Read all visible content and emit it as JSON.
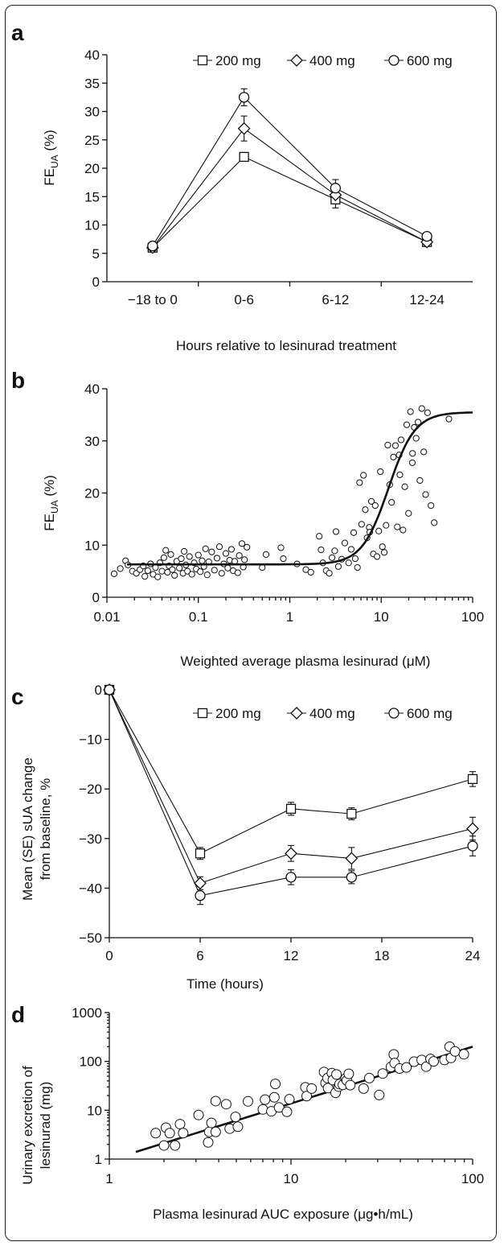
{
  "chart_data": [
    {
      "panel": "a",
      "type": "line",
      "ylabel_main": "FE",
      "ylabel_sub": "UA",
      "ylabel_tail": " (%)",
      "xlabel": "Hours relative to lesinurad treatment",
      "categories": [
        "−18 to 0",
        "0-6",
        "6-12",
        "12-24"
      ],
      "ylim": [
        0,
        40
      ],
      "yticks": [
        0,
        5,
        10,
        15,
        20,
        25,
        30,
        35,
        40
      ],
      "legend_position": "top-right",
      "series": [
        {
          "name": "200 mg",
          "marker": "square",
          "values": [
            6,
            22,
            14.5,
            7
          ],
          "errors": [
            0.3,
            0.4,
            1.5,
            0.5
          ]
        },
        {
          "name": "400 mg",
          "marker": "diamond",
          "values": [
            6,
            27,
            15.3,
            7
          ],
          "errors": [
            0.3,
            2.2,
            1.5,
            0.6
          ]
        },
        {
          "name": "600 mg",
          "marker": "circle",
          "values": [
            6.3,
            32.5,
            16.5,
            8
          ],
          "errors": [
            0.3,
            1.5,
            1.5,
            0.4
          ]
        }
      ]
    },
    {
      "panel": "b",
      "type": "scatter",
      "ylabel_main": "FE",
      "ylabel_sub": "UA",
      "ylabel_tail": " (%)",
      "xlabel": "Weighted average plasma lesinurad (μM)",
      "xscale": "log",
      "xlim": [
        0.01,
        100
      ],
      "xticks": [
        "0.01",
        "0.1",
        "1",
        "10",
        "100"
      ],
      "ylim": [
        0,
        40
      ],
      "yticks": [
        0,
        10,
        20,
        30,
        40
      ],
      "fit_curve": {
        "baseline": 6.3,
        "max": 35.5,
        "ec50": 12,
        "hill": 3
      },
      "points": [
        [
          0.012,
          4.5
        ],
        [
          0.014,
          5.5
        ],
        [
          0.016,
          7
        ],
        [
          0.017,
          6.2
        ],
        [
          0.019,
          5
        ],
        [
          0.021,
          4.6
        ],
        [
          0.023,
          5.3
        ],
        [
          0.025,
          6
        ],
        [
          0.026,
          4
        ],
        [
          0.028,
          5.1
        ],
        [
          0.03,
          6.4
        ],
        [
          0.032,
          4.4
        ],
        [
          0.034,
          5.7
        ],
        [
          0.036,
          3.9
        ],
        [
          0.038,
          6.6
        ],
        [
          0.04,
          5
        ],
        [
          0.042,
          7.6
        ],
        [
          0.044,
          9
        ],
        [
          0.046,
          4.8
        ],
        [
          0.048,
          6
        ],
        [
          0.05,
          8.2
        ],
        [
          0.052,
          5.3
        ],
        [
          0.055,
          4.2
        ],
        [
          0.058,
          6.9
        ],
        [
          0.062,
          5.6
        ],
        [
          0.065,
          7.4
        ],
        [
          0.068,
          4.6
        ],
        [
          0.07,
          8.8
        ],
        [
          0.073,
          6.2
        ],
        [
          0.076,
          5
        ],
        [
          0.08,
          7.8
        ],
        [
          0.085,
          4.4
        ],
        [
          0.09,
          6.6
        ],
        [
          0.095,
          5.4
        ],
        [
          0.1,
          8.1
        ],
        [
          0.105,
          4.9
        ],
        [
          0.11,
          7
        ],
        [
          0.115,
          5.9
        ],
        [
          0.12,
          9.3
        ],
        [
          0.125,
          4.3
        ],
        [
          0.13,
          6.8
        ],
        [
          0.14,
          8.7
        ],
        [
          0.15,
          5.2
        ],
        [
          0.16,
          7.5
        ],
        [
          0.17,
          9.7
        ],
        [
          0.18,
          4.6
        ],
        [
          0.19,
          6.4
        ],
        [
          0.2,
          8.4
        ],
        [
          0.21,
          5.6
        ],
        [
          0.22,
          7.1
        ],
        [
          0.23,
          9.2
        ],
        [
          0.24,
          5.1
        ],
        [
          0.25,
          6.9
        ],
        [
          0.27,
          4.7
        ],
        [
          0.28,
          8
        ],
        [
          0.3,
          10.3
        ],
        [
          0.31,
          5.8
        ],
        [
          0.32,
          7.2
        ],
        [
          0.34,
          9.6
        ],
        [
          0.5,
          5.7
        ],
        [
          0.55,
          8.2
        ],
        [
          0.8,
          9.5
        ],
        [
          0.85,
          7.4
        ],
        [
          1.2,
          6.4
        ],
        [
          1.5,
          5.3
        ],
        [
          1.7,
          4.8
        ],
        [
          2.1,
          11.7
        ],
        [
          2.2,
          9.1
        ],
        [
          2.3,
          6.6
        ],
        [
          2.5,
          5.1
        ],
        [
          2.7,
          4.6
        ],
        [
          2.9,
          7.6
        ],
        [
          3.1,
          8.9
        ],
        [
          3.2,
          12.6
        ],
        [
          3.4,
          5.9
        ],
        [
          3.7,
          7.3
        ],
        [
          4,
          10.4
        ],
        [
          4.4,
          6.6
        ],
        [
          4.7,
          9.2
        ],
        [
          5,
          12.4
        ],
        [
          5.2,
          7.4
        ],
        [
          5.5,
          5.7
        ],
        [
          5.8,
          22
        ],
        [
          6.1,
          14
        ],
        [
          6.4,
          23.4
        ],
        [
          6.7,
          16.8
        ],
        [
          7,
          11.4
        ],
        [
          7.4,
          13.4
        ],
        [
          7.8,
          18.4
        ],
        [
          8.2,
          8.3
        ],
        [
          8.6,
          17.6
        ],
        [
          9,
          7.8
        ],
        [
          9.4,
          12.7
        ],
        [
          9.8,
          24.1
        ],
        [
          10.3,
          9.7
        ],
        [
          10.8,
          8.6
        ],
        [
          11.3,
          13.8
        ],
        [
          11.8,
          29.2
        ],
        [
          12.4,
          21.6
        ],
        [
          13,
          18.2
        ],
        [
          13.6,
          26.9
        ],
        [
          14.3,
          29.1
        ],
        [
          15,
          13.5
        ],
        [
          15.7,
          27.3
        ],
        [
          16.5,
          30.2
        ],
        [
          17.3,
          12.9
        ],
        [
          18.1,
          21.2
        ],
        [
          19,
          33.1
        ],
        [
          19.9,
          16.1
        ],
        [
          20.9,
          35.6
        ],
        [
          21.9,
          25.8
        ],
        [
          23,
          32.6
        ],
        [
          24.1,
          30.5
        ],
        [
          25.3,
          33.6
        ],
        [
          26.5,
          22.4
        ],
        [
          27.8,
          36.2
        ],
        [
          29.2,
          27.9
        ],
        [
          30.6,
          19.7
        ],
        [
          32.1,
          35.4
        ],
        [
          35,
          17.6
        ],
        [
          38,
          14.3
        ],
        [
          55,
          34.2
        ],
        [
          7.5,
          12.5
        ],
        [
          16,
          23.5
        ],
        [
          22,
          27.6
        ]
      ]
    },
    {
      "panel": "c",
      "type": "line",
      "ylabel_line1": "Mean (SE) sUA change",
      "ylabel_line2": "from baseline, %",
      "xlabel": "Time (hours)",
      "x": [
        0,
        6,
        12,
        16,
        24
      ],
      "xlim": [
        0,
        24
      ],
      "xticks": [
        0,
        6,
        12,
        18,
        24
      ],
      "ylim": [
        -50,
        0
      ],
      "yticks": [
        0,
        -10,
        -20,
        -30,
        -40,
        -50
      ],
      "legend_position": "top-right",
      "series": [
        {
          "name": "200 mg",
          "marker": "square",
          "values": [
            0,
            -33,
            -24,
            -25,
            -18
          ],
          "errors": [
            0.3,
            1.2,
            1.3,
            1.2,
            1.5
          ]
        },
        {
          "name": "400 mg",
          "marker": "diamond",
          "values": [
            0,
            -39,
            -33,
            -34,
            -28
          ],
          "errors": [
            0.3,
            1.3,
            1.6,
            2.2,
            2.3
          ]
        },
        {
          "name": "600 mg",
          "marker": "circle",
          "values": [
            0,
            -41.5,
            -37.8,
            -37.8,
            -31.5
          ],
          "errors": [
            0.3,
            1.8,
            1.5,
            1.3,
            2.0
          ]
        }
      ]
    },
    {
      "panel": "d",
      "type": "scatter",
      "ylabel_line1": "Urinary excretion of",
      "ylabel_line2": "lesinurad (mg)",
      "xlabel": "Plasma lesinurad AUC exposure (μg•h/mL)",
      "xscale": "log",
      "yscale": "log",
      "xlim": [
        1,
        100
      ],
      "ylim": [
        1,
        1000
      ],
      "xticks": [
        "1",
        "10",
        "100"
      ],
      "yticks": [
        "1",
        "10",
        "100",
        "1000"
      ],
      "fit_line": {
        "x": [
          1.4,
          100
        ],
        "y": [
          1.4,
          200
        ]
      },
      "points": [
        [
          1.8,
          3.4
        ],
        [
          2,
          1.9
        ],
        [
          2.05,
          4.4
        ],
        [
          2.15,
          3.4
        ],
        [
          2.3,
          1.9
        ],
        [
          2.45,
          5.2
        ],
        [
          2.55,
          3.4
        ],
        [
          3.1,
          8
        ],
        [
          3.5,
          2.2
        ],
        [
          3.55,
          3.6
        ],
        [
          3.65,
          5.5
        ],
        [
          3.85,
          3.6
        ],
        [
          3.85,
          15.4
        ],
        [
          4.4,
          13.3
        ],
        [
          4.6,
          4.2
        ],
        [
          4.95,
          7.3
        ],
        [
          5.1,
          4.6
        ],
        [
          5.8,
          15.2
        ],
        [
          7,
          10.4
        ],
        [
          7.2,
          16.5
        ],
        [
          7.8,
          9.5
        ],
        [
          8.1,
          18.4
        ],
        [
          8.2,
          34.6
        ],
        [
          8.6,
          11.4
        ],
        [
          9.5,
          9.3
        ],
        [
          9.8,
          16.8
        ],
        [
          12,
          29.5
        ],
        [
          12.2,
          19.5
        ],
        [
          13,
          27.8
        ],
        [
          15.2,
          60.7
        ],
        [
          15.5,
          36.1
        ],
        [
          15.9,
          45.6
        ],
        [
          16,
          28.4
        ],
        [
          16.8,
          57.5
        ],
        [
          17,
          41.4
        ],
        [
          17.6,
          22.8
        ],
        [
          17.8,
          54
        ],
        [
          18.3,
          30.5
        ],
        [
          18.5,
          34.2
        ],
        [
          19.3,
          33.1
        ],
        [
          20,
          45
        ],
        [
          20.3,
          40.7
        ],
        [
          20.8,
          55.6
        ],
        [
          21.2,
          32.7
        ],
        [
          25.1,
          27.8
        ],
        [
          27,
          45.5
        ],
        [
          30.6,
          20.5
        ],
        [
          32,
          56.5
        ],
        [
          35.5,
          77
        ],
        [
          36.8,
          139
        ],
        [
          37.2,
          92.2
        ],
        [
          39.6,
          71.4
        ],
        [
          43.2,
          75.4
        ],
        [
          47.6,
          98.8
        ],
        [
          52.4,
          107
        ],
        [
          55.5,
          78
        ],
        [
          58.6,
          112
        ],
        [
          61,
          100
        ],
        [
          70,
          107
        ],
        [
          74.7,
          200
        ],
        [
          76,
          118
        ],
        [
          80,
          160
        ],
        [
          89.5,
          140
        ]
      ]
    }
  ]
}
